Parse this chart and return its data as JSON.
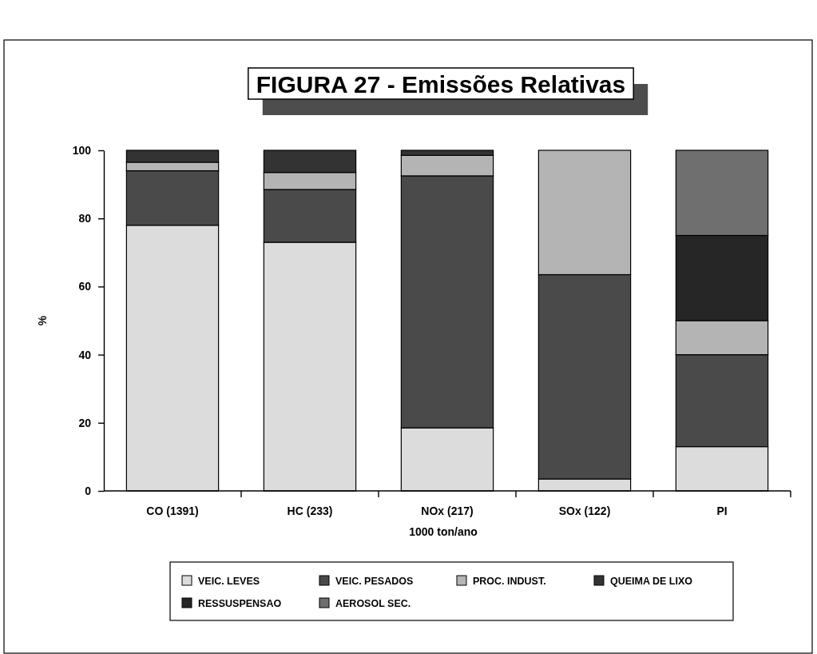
{
  "chart_data": {
    "type": "bar",
    "title": "FIGURA 27 - Emissões Relativas",
    "xlabel": "1000 ton/ano",
    "ylabel": "%",
    "categories": [
      "CO (1391)",
      "HC (233)",
      "NOx (217)",
      "SOx (122)",
      "PI"
    ],
    "series": [
      {
        "name": "VEIC. LEVES",
        "color": "#dcdcdc",
        "values": [
          78,
          73,
          18.5,
          3.5,
          13
        ]
      },
      {
        "name": "VEIC. PESADOS",
        "color": "#4a4a4a",
        "values": [
          16,
          15.5,
          74,
          60,
          27
        ]
      },
      {
        "name": "PROC. INDUST.",
        "color": "#b4b4b4",
        "values": [
          2.5,
          5,
          6,
          36.5,
          10
        ]
      },
      {
        "name": "QUEIMA DE LIXO",
        "color": "#333333",
        "values": [
          3.5,
          6.5,
          1.5,
          null,
          null
        ]
      },
      {
        "name": "RESSUSPENSAO",
        "color": "#262626",
        "values": [
          null,
          null,
          null,
          null,
          25
        ]
      },
      {
        "name": "AEROSOL SEC.",
        "color": "#6f6f6f",
        "values": [
          null,
          null,
          null,
          null,
          25
        ]
      }
    ],
    "stacked": true,
    "ylim": [
      0,
      100
    ],
    "yticks": [
      0,
      20,
      40,
      60,
      80,
      100
    ],
    "grid": false,
    "legend": "bottom"
  }
}
